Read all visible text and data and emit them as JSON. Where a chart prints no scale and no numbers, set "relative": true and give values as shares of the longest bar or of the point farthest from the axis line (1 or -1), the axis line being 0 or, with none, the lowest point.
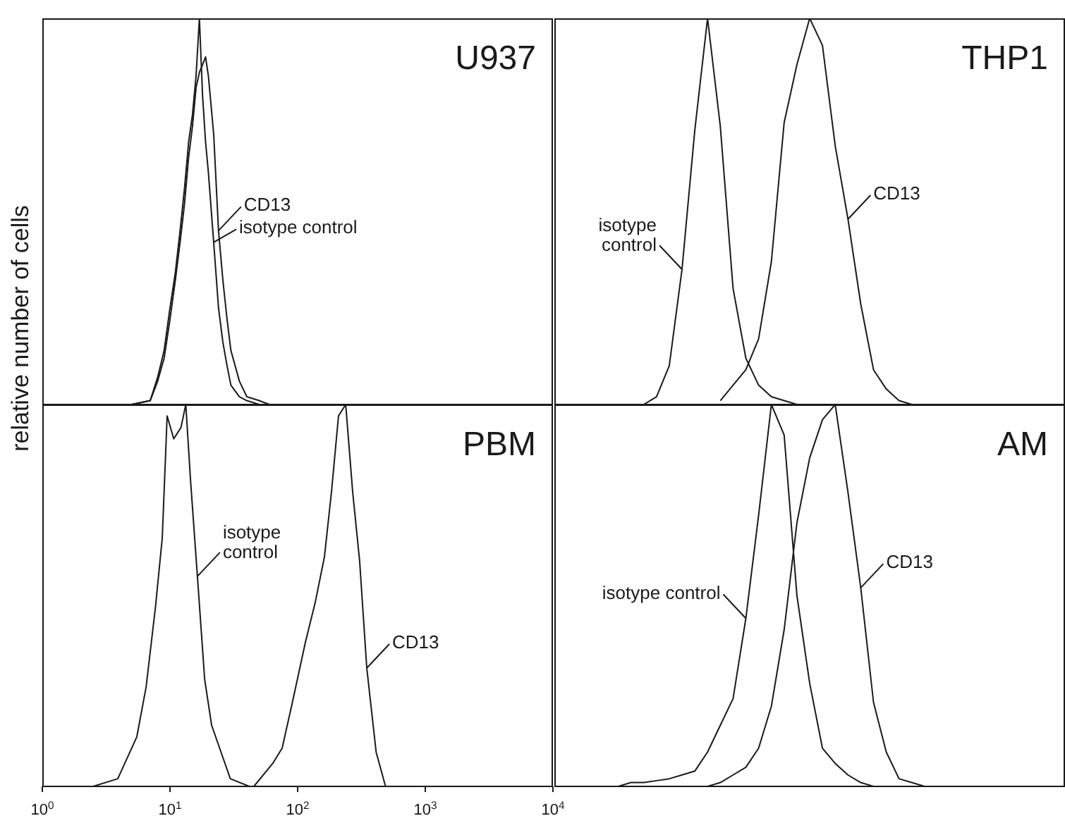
{
  "chart_data": [
    {
      "type": "line",
      "title": "U937",
      "ylabel": "relative number of cells",
      "relative": true,
      "log": "x",
      "xlim": [
        1,
        10000
      ],
      "tick_labels": false,
      "series": [
        {
          "name": "isotype control",
          "color": "#1a1a1a",
          "x": [
            3,
            5,
            7,
            8,
            9,
            10,
            11,
            12,
            13,
            14,
            15,
            16,
            17,
            18,
            19,
            20,
            22,
            24,
            26,
            28,
            30,
            35,
            40,
            50
          ],
          "values": [
            0,
            0,
            0.01,
            0.07,
            0.14,
            0.25,
            0.34,
            0.45,
            0.56,
            0.68,
            0.75,
            0.85,
            1,
            0.8,
            0.68,
            0.6,
            0.42,
            0.25,
            0.16,
            0.1,
            0.05,
            0.02,
            0.01,
            0
          ]
        },
        {
          "name": "CD13",
          "color": "#1a1a1a",
          "x": [
            3,
            5,
            7,
            8,
            9,
            10,
            11,
            12,
            13,
            14,
            15,
            16,
            17,
            18,
            19,
            20,
            22,
            24,
            26,
            28,
            30,
            35,
            40,
            50,
            60
          ],
          "values": [
            0,
            0,
            0.01,
            0.06,
            0.12,
            0.22,
            0.32,
            0.42,
            0.52,
            0.64,
            0.72,
            0.82,
            0.86,
            0.88,
            0.9,
            0.85,
            0.7,
            0.45,
            0.32,
            0.22,
            0.14,
            0.06,
            0.02,
            0.01,
            0
          ]
        }
      ]
    },
    {
      "type": "line",
      "title": "THP1",
      "relative": true,
      "tick_labels": false,
      "categories": [
        null,
        null,
        null,
        null,
        null,
        null,
        null,
        null,
        null,
        null,
        null,
        null,
        null,
        null,
        null,
        null,
        null,
        null,
        null,
        null,
        null,
        null,
        null,
        null,
        null,
        null,
        null,
        null,
        null,
        null,
        null,
        null,
        null,
        null,
        null,
        null,
        null,
        null,
        null,
        null,
        null
      ],
      "series": [
        {
          "name": "isotype control",
          "color": "#1a1a1a",
          "values": [
            null,
            null,
            null,
            null,
            null,
            null,
            null,
            0,
            0.02,
            0.1,
            0.35,
            0.71,
            1,
            0.72,
            0.3,
            0.12,
            0.05,
            0.02,
            0.01,
            0,
            null,
            null,
            null,
            null,
            null,
            null,
            null,
            null,
            null,
            null,
            null,
            null,
            null,
            null,
            null,
            null,
            null,
            null,
            null,
            null,
            null
          ]
        },
        {
          "name": "CD13",
          "color": "#1a1a1a",
          "values": [
            null,
            null,
            null,
            null,
            null,
            null,
            null,
            null,
            null,
            null,
            null,
            null,
            null,
            0.01,
            0.05,
            0.09,
            0.17,
            0.37,
            0.73,
            0.88,
            1,
            0.93,
            0.67,
            0.48,
            0.26,
            0.09,
            0.04,
            0.01,
            0,
            null,
            null,
            null,
            null,
            null,
            null,
            null,
            null,
            null,
            null,
            null,
            null
          ]
        }
      ]
    },
    {
      "type": "line",
      "title": "PBM",
      "relative": true,
      "log": "x",
      "xlim": [
        1,
        10000
      ],
      "tick_labels": "x",
      "xticks": [
        {
          "value": 1,
          "label": "10$^{0}$"
        },
        {
          "value": 10,
          "label": "10$^{1}$"
        },
        {
          "value": 100,
          "label": "10$^{2}$"
        },
        {
          "value": 1000,
          "label": "10$^{3}$"
        },
        {
          "value": 10000,
          "label": "10$^{4}$"
        }
      ],
      "series": [
        {
          "name": "isotype control",
          "color": "#1a1a1a",
          "x": [
            2.5,
            3.9,
            5.5,
            6.5,
            7.7,
            8.7,
            9.5,
            10.7,
            12.2,
            13.3,
            14.5,
            16.4,
            18.7,
            21.2,
            25.1,
            29.7,
            41.8
          ],
          "values": [
            0,
            0.02,
            0.13,
            0.26,
            0.47,
            0.65,
            0.97,
            0.91,
            0.94,
            1,
            0.8,
            0.55,
            0.28,
            0.16,
            0.09,
            0.02,
            0
          ]
        },
        {
          "name": "CD13",
          "color": "#1a1a1a",
          "x": [
            45.4,
            63.8,
            75.6,
            89.6,
            115.5,
            137,
            162,
            184,
            209,
            238,
            270,
            306,
            348,
            412,
            488
          ],
          "values": [
            0,
            0.06,
            0.1,
            0.21,
            0.38,
            0.48,
            0.6,
            0.77,
            0.97,
            1,
            0.77,
            0.59,
            0.31,
            0.09,
            0
          ]
        }
      ]
    },
    {
      "type": "line",
      "title": "AM",
      "relative": true,
      "tick_labels": false,
      "categories": [
        null,
        null,
        null,
        null,
        null,
        null,
        null,
        null,
        null,
        null,
        null,
        null,
        null,
        null,
        null,
        null,
        null,
        null,
        null,
        null,
        null,
        null,
        null,
        null,
        null,
        null,
        null,
        null,
        null,
        null,
        null,
        null,
        null,
        null,
        null,
        null,
        null,
        null,
        null,
        null,
        null
      ],
      "series": [
        {
          "name": "isotype control",
          "color": "#1a1a1a",
          "values": [
            null,
            null,
            null,
            null,
            0,
            0,
            0.01,
            0.01,
            0.015,
            0.02,
            0.03,
            0.04,
            0.09,
            0.16,
            0.23,
            0.44,
            0.71,
            1,
            0.92,
            0.5,
            0.27,
            0.1,
            0.06,
            0.03,
            0.01,
            0,
            0,
            null,
            null,
            null,
            null,
            null,
            null,
            null,
            null,
            null,
            null,
            null,
            null,
            null,
            null
          ]
        },
        {
          "name": "CD13",
          "color": "#1a1a1a",
          "values": [
            null,
            null,
            null,
            null,
            null,
            null,
            null,
            null,
            null,
            null,
            null,
            null,
            0,
            0.01,
            0.03,
            0.05,
            0.1,
            0.21,
            0.41,
            0.69,
            0.86,
            0.96,
            1,
            0.77,
            0.52,
            0.22,
            0.09,
            0.02,
            0.01,
            0,
            null,
            null,
            null,
            null,
            null,
            null,
            null,
            null,
            null,
            null,
            null
          ]
        }
      ]
    }
  ]
}
